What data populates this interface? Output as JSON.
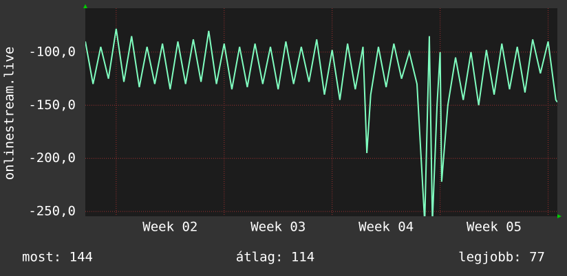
{
  "chart_data": {
    "type": "line",
    "ylabel": "onlinestream.live",
    "x": [
      0,
      0.5,
      1,
      1.5,
      2,
      2.5,
      3,
      3.5,
      4,
      4.5,
      5,
      5.5,
      6,
      6.5,
      7,
      7.5,
      8,
      8.5,
      9,
      9.5,
      10,
      10.5,
      11,
      11.5,
      12,
      12.5,
      13,
      13.5,
      14,
      14.5,
      15,
      15.5,
      16,
      16.5,
      17,
      17.5,
      18,
      18.25,
      18.5,
      19,
      19.5,
      20,
      20.5,
      21,
      21.5,
      22,
      22.3,
      22.5,
      22.8,
      23,
      23.1,
      23.5,
      24,
      24.5,
      25,
      25.5,
      26,
      26.5,
      27,
      27.5,
      28,
      28.5,
      29,
      29.5,
      30,
      30.5,
      30.6
    ],
    "series": [
      {
        "name": "onlinestream.live",
        "color": "#80ffc0",
        "values": [
          -90,
          -130,
          -95,
          -125,
          -78,
          -128,
          -85,
          -133,
          -95,
          -130,
          -92,
          -135,
          -90,
          -130,
          -88,
          -128,
          -80,
          -130,
          -92,
          -135,
          -95,
          -133,
          -92,
          -130,
          -95,
          -135,
          -90,
          -130,
          -95,
          -128,
          -88,
          -140,
          -98,
          -145,
          -92,
          -135,
          -95,
          -195,
          -140,
          -95,
          -133,
          -92,
          -125,
          -100,
          -130,
          -260,
          -85,
          -260,
          -150,
          -100,
          -222,
          -150,
          -105,
          -145,
          -100,
          -150,
          -98,
          -140,
          -92,
          -135,
          -95,
          -138,
          -88,
          -120,
          -90,
          -145,
          -147
        ]
      }
    ],
    "xlim": [
      0,
      30.6
    ],
    "xticks": [
      {
        "value": 5.5,
        "label": "Week 02"
      },
      {
        "value": 12.5,
        "label": "Week 03"
      },
      {
        "value": 19.5,
        "label": "Week 04"
      },
      {
        "value": 26.5,
        "label": "Week 05"
      }
    ],
    "xgrid": [
      2,
      9,
      16,
      23,
      30
    ],
    "ylim": [
      -254.5,
      -58.7
    ],
    "yticks": [
      {
        "value": -100,
        "label": "-100,0"
      },
      {
        "value": -150,
        "label": "-150,0"
      },
      {
        "value": -200,
        "label": "-200,0"
      },
      {
        "value": -250,
        "label": "-250,0"
      }
    ],
    "grid": true,
    "stats": [
      "most: 144",
      "átlag: 114",
      "legjobb: 77"
    ]
  }
}
